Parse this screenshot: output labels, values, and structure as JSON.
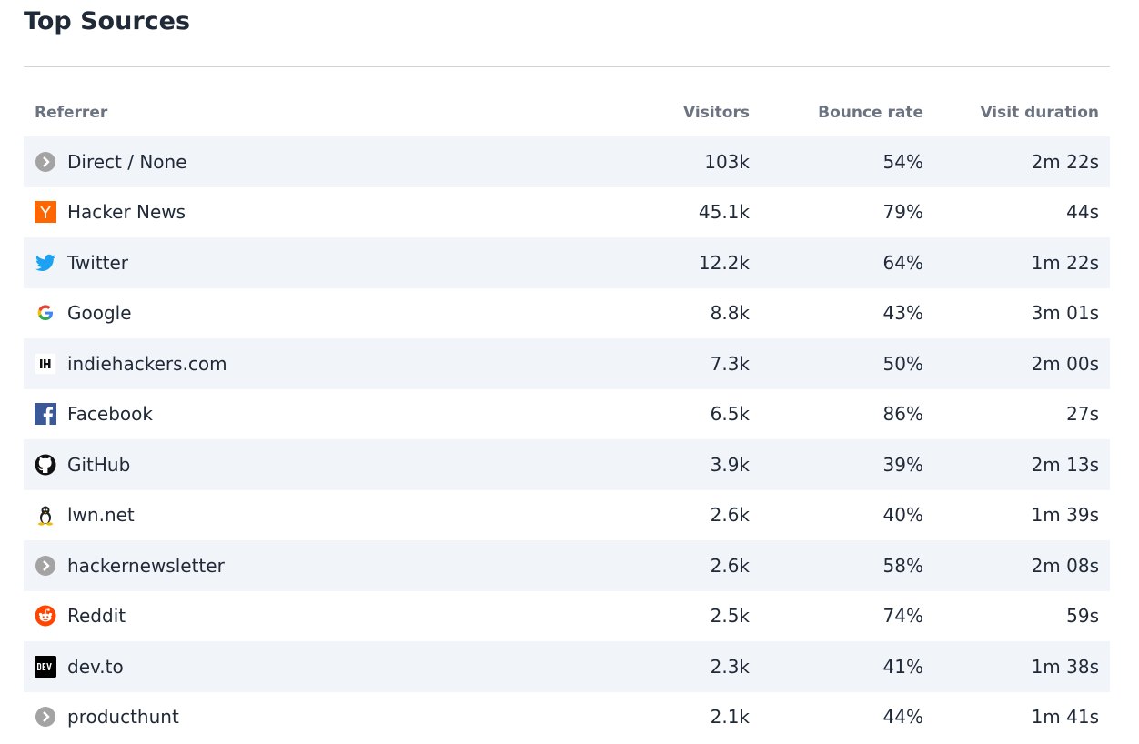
{
  "header": {
    "title": "Top Sources"
  },
  "table": {
    "columns": [
      "Referrer",
      "Visitors",
      "Bounce rate",
      "Visit duration"
    ],
    "rows": [
      [
        "Direct / None",
        "103k",
        "54%",
        "2m 22s"
      ],
      [
        "Hacker News",
        "45.1k",
        "79%",
        "44s"
      ],
      [
        "Twitter",
        "12.2k",
        "64%",
        "1m 22s"
      ],
      [
        "Google",
        "8.8k",
        "43%",
        "3m 01s"
      ],
      [
        "indiehackers.com",
        "7.3k",
        "50%",
        "2m 00s"
      ],
      [
        "Facebook",
        "6.5k",
        "86%",
        "27s"
      ],
      [
        "GitHub",
        "3.9k",
        "39%",
        "2m 13s"
      ],
      [
        "lwn.net",
        "2.6k",
        "40%",
        "1m 39s"
      ],
      [
        "hackernewsletter",
        "2.6k",
        "58%",
        "2m 08s"
      ],
      [
        "Reddit",
        "2.5k",
        "74%",
        "59s"
      ],
      [
        "dev.to",
        "2.3k",
        "41%",
        "1m 38s"
      ],
      [
        "producthunt",
        "2.1k",
        "44%",
        "1m 41s"
      ]
    ]
  }
}
